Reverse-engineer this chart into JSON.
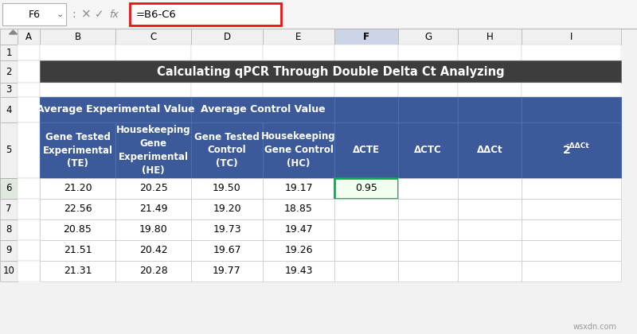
{
  "title": "Calculating qPCR Through Double Delta Ct Analyzing",
  "title_bg": "#3d3d3d",
  "title_color": "#ffffff",
  "header_bg": "#3c5a99",
  "header_fg": "#ffffff",
  "formula_bar_cell": "F6",
  "formula_bar_formula": "=B6-C6",
  "col_letters": [
    "A",
    "B",
    "C",
    "D",
    "E",
    "F",
    "G",
    "H",
    "I"
  ],
  "col_headers_row4": [
    "Average Experimental Value",
    "Average Control Value"
  ],
  "col_headers_row5": [
    "Gene Tested\nExperimental\n(TE)",
    "Housekeeping\nGene\nExperimental\n(HE)",
    "Gene Tested\nControl\n(TC)",
    "Housekeeping\nGene Control\n(HC)",
    "ΔCTE",
    "ΔCTC",
    "ΔΔCt",
    "2"
  ],
  "data_rows": [
    [
      "21.20",
      "20.25",
      "19.50",
      "19.17",
      "0.95",
      "",
      "",
      ""
    ],
    [
      "22.56",
      "21.49",
      "19.20",
      "18.85",
      "",
      "",
      "",
      ""
    ],
    [
      "20.85",
      "19.80",
      "19.73",
      "19.47",
      "",
      "",
      "",
      ""
    ],
    [
      "21.51",
      "20.42",
      "19.67",
      "19.26",
      "",
      "",
      "",
      ""
    ],
    [
      "21.31",
      "20.28",
      "19.77",
      "19.43",
      "",
      "",
      "",
      ""
    ]
  ],
  "highlight_cell": [
    0,
    4
  ],
  "highlight_color": "#00b050",
  "watermark": "wsxdn.com",
  "bg_color": "#f2f2f2",
  "excel_white": "#ffffff",
  "cell_border": "#c8c8c8",
  "header_border": "#4a6faf",
  "row6_highlight_bg": "#e8f0e8"
}
